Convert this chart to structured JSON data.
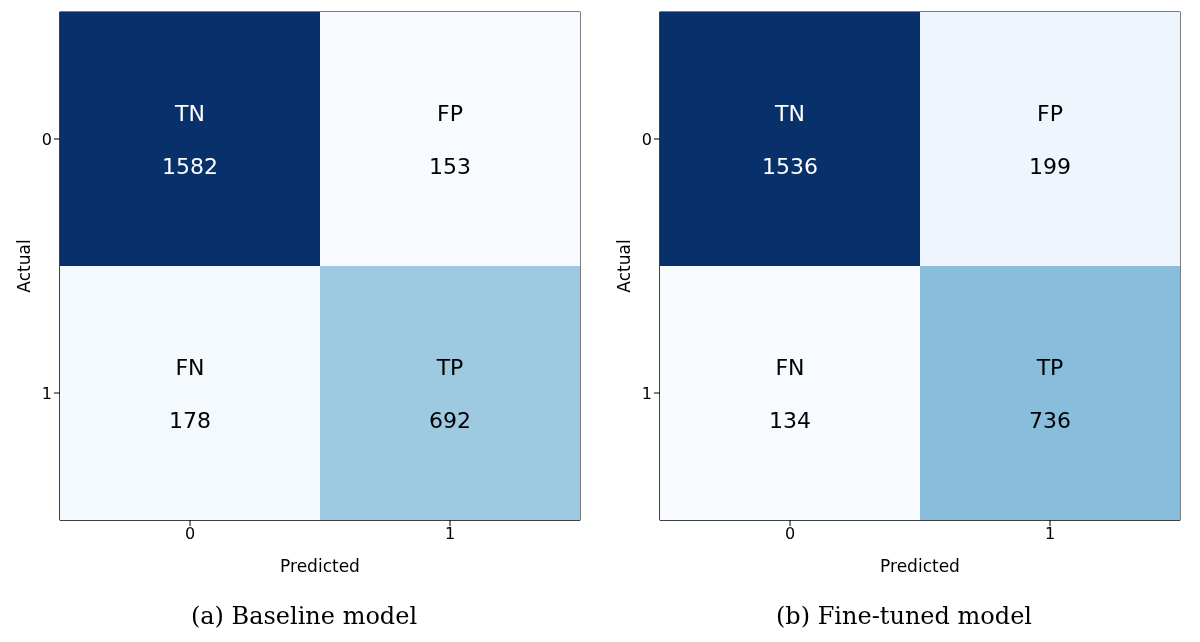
{
  "chart_data": [
    {
      "type": "heatmap",
      "title": "(a) Baseline model",
      "xlabel": "Predicted",
      "ylabel": "Actual",
      "categories": [
        "0",
        "1"
      ],
      "y_categories": [
        "0",
        "1"
      ],
      "cells": [
        [
          1582,
          153
        ],
        [
          178,
          692
        ]
      ],
      "data_labels": true,
      "annotations": [
        "TN",
        "FP",
        "FN",
        "TP"
      ]
    },
    {
      "type": "heatmap",
      "title": "(b) Fine-tuned model",
      "xlabel": "Predicted",
      "ylabel": "Actual",
      "categories": [
        "0",
        "1"
      ],
      "y_categories": [
        "0",
        "1"
      ],
      "cells": [
        [
          1536,
          199
        ],
        [
          134,
          736
        ]
      ],
      "data_labels": true,
      "annotations": [
        "TN",
        "FP",
        "FN",
        "TP"
      ]
    }
  ]
}
